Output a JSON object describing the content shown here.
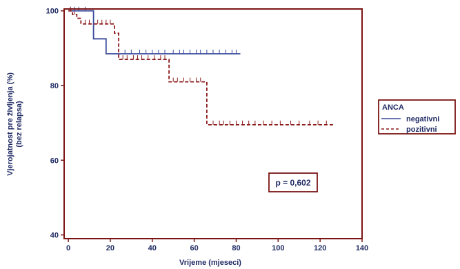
{
  "colors": {
    "frame": "#7b1414",
    "text": "#1f2a63",
    "negativni": "#3a4a9c",
    "pozitivni": "#8b1a1a"
  },
  "chart_data": {
    "type": "line",
    "step": true,
    "xlabel": "Vrijeme (mjeseci)",
    "ylabel": "Vjerojatnost pre življenja (%)",
    "ylabel2": "(bez relapsa)",
    "xlim": [
      -2,
      140
    ],
    "ylim": [
      39,
      100.5
    ],
    "xticks": [
      0,
      20,
      40,
      60,
      80,
      100,
      120,
      140
    ],
    "yticks": [
      40,
      60,
      80,
      100
    ],
    "grid": false,
    "legend": {
      "title": "ANCA",
      "position": "right"
    },
    "annotation": "p = 0,602",
    "series": [
      {
        "name": "negativni",
        "style": "solid",
        "steps": [
          [
            0,
            100
          ],
          [
            12,
            100
          ],
          [
            12,
            92.5
          ],
          [
            18,
            92.5
          ],
          [
            18,
            88.5
          ],
          [
            82,
            88.5
          ]
        ],
        "censored": [
          1,
          3,
          5,
          8,
          27,
          30,
          34,
          37,
          40,
          43,
          46,
          50,
          53,
          55,
          58,
          61,
          63,
          66,
          69,
          72,
          75,
          78,
          80
        ]
      },
      {
        "name": "pozitivni",
        "style": "dashed",
        "steps": [
          [
            0,
            100
          ],
          [
            2,
            100
          ],
          [
            2,
            99
          ],
          [
            4,
            99
          ],
          [
            4,
            98
          ],
          [
            6,
            98
          ],
          [
            6,
            96.5
          ],
          [
            22,
            96.5
          ],
          [
            22,
            94
          ],
          [
            24,
            94
          ],
          [
            24,
            87
          ],
          [
            48,
            87
          ],
          [
            48,
            81
          ],
          [
            66,
            81
          ],
          [
            66,
            69.5
          ],
          [
            127,
            69.5
          ]
        ],
        "censored": [
          1,
          3,
          8,
          10,
          12,
          14,
          16,
          18,
          20,
          26,
          28,
          31,
          33,
          35,
          38,
          41,
          44,
          46,
          50,
          52,
          55,
          58,
          61,
          63,
          69,
          72,
          74,
          77,
          80,
          83,
          86,
          89,
          93,
          97,
          101,
          106,
          110,
          115,
          119,
          123
        ]
      }
    ]
  }
}
